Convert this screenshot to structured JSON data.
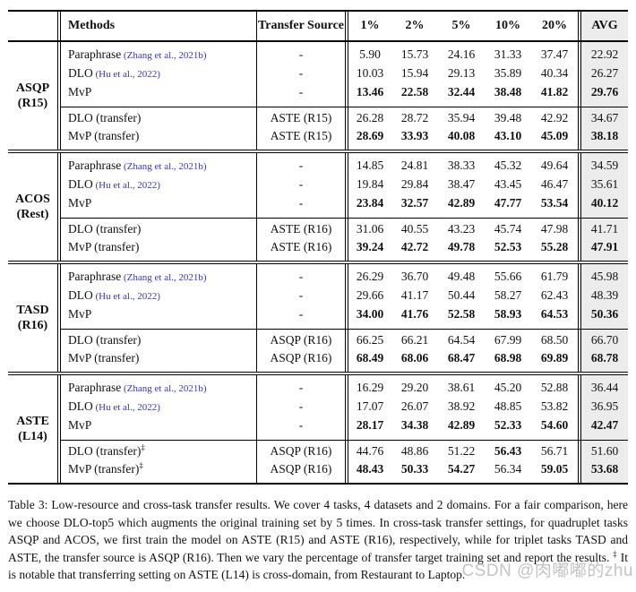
{
  "colors": {
    "citation": "#3535c3",
    "avg_column_bg": "#ececec",
    "rule": "#000000",
    "watermark": "#b9b9b9"
  },
  "table": {
    "header": {
      "methods": "Methods",
      "transfer_source": "Transfer Source",
      "percents": [
        "1%",
        "2%",
        "5%",
        "10%",
        "20%"
      ],
      "avg": "AVG"
    },
    "blocks": [
      {
        "task": "ASQP",
        "dataset": "(R15)",
        "baseline_rows": [
          {
            "method": "Paraphrase",
            "citation": "(Zhang et al., 2021b)",
            "marker": "",
            "source": "-",
            "values": [
              "5.90",
              "15.73",
              "24.16",
              "31.33",
              "37.47"
            ],
            "bold": [
              0,
              0,
              0,
              0,
              0
            ],
            "avg": "22.92",
            "avg_bold": 0
          },
          {
            "method": "DLO",
            "citation": "(Hu et al., 2022)",
            "marker": "",
            "source": "-",
            "values": [
              "10.03",
              "15.94",
              "29.13",
              "35.89",
              "40.34"
            ],
            "bold": [
              0,
              0,
              0,
              0,
              0
            ],
            "avg": "26.27",
            "avg_bold": 0
          },
          {
            "method": "MvP",
            "citation": "",
            "marker": "",
            "source": "-",
            "values": [
              "13.46",
              "22.58",
              "32.44",
              "38.48",
              "41.82"
            ],
            "bold": [
              1,
              1,
              1,
              1,
              1
            ],
            "avg": "29.76",
            "avg_bold": 1
          }
        ],
        "transfer_rows": [
          {
            "method": "DLO (transfer)",
            "citation": "",
            "marker": "",
            "source": "ASTE (R15)",
            "values": [
              "26.28",
              "28.72",
              "35.94",
              "39.48",
              "42.92"
            ],
            "bold": [
              0,
              0,
              0,
              0,
              0
            ],
            "avg": "34.67",
            "avg_bold": 0
          },
          {
            "method": "MvP (transfer)",
            "citation": "",
            "marker": "",
            "source": "ASTE (R15)",
            "values": [
              "28.69",
              "33.93",
              "40.08",
              "43.10",
              "45.09"
            ],
            "bold": [
              1,
              1,
              1,
              1,
              1
            ],
            "avg": "38.18",
            "avg_bold": 1
          }
        ]
      },
      {
        "task": "ACOS",
        "dataset": "(Rest)",
        "baseline_rows": [
          {
            "method": "Paraphrase",
            "citation": "(Zhang et al., 2021b)",
            "marker": "",
            "source": "-",
            "values": [
              "14.85",
              "24.81",
              "38.33",
              "45.32",
              "49.64"
            ],
            "bold": [
              0,
              0,
              0,
              0,
              0
            ],
            "avg": "34.59",
            "avg_bold": 0
          },
          {
            "method": "DLO",
            "citation": "(Hu et al., 2022)",
            "marker": "",
            "source": "-",
            "values": [
              "19.84",
              "29.84",
              "38.47",
              "43.45",
              "46.47"
            ],
            "bold": [
              0,
              0,
              0,
              0,
              0
            ],
            "avg": "35.61",
            "avg_bold": 0
          },
          {
            "method": "MvP",
            "citation": "",
            "marker": "",
            "source": "-",
            "values": [
              "23.84",
              "32.57",
              "42.89",
              "47.77",
              "53.54"
            ],
            "bold": [
              1,
              1,
              1,
              1,
              1
            ],
            "avg": "40.12",
            "avg_bold": 1
          }
        ],
        "transfer_rows": [
          {
            "method": "DLO (transfer)",
            "citation": "",
            "marker": "",
            "source": "ASTE (R16)",
            "values": [
              "31.06",
              "40.55",
              "43.23",
              "45.74",
              "47.98"
            ],
            "bold": [
              0,
              0,
              0,
              0,
              0
            ],
            "avg": "41.71",
            "avg_bold": 0
          },
          {
            "method": "MvP (transfer)",
            "citation": "",
            "marker": "",
            "source": "ASTE (R16)",
            "values": [
              "39.24",
              "42.72",
              "49.78",
              "52.53",
              "55.28"
            ],
            "bold": [
              1,
              1,
              1,
              1,
              1
            ],
            "avg": "47.91",
            "avg_bold": 1
          }
        ]
      },
      {
        "task": "TASD",
        "dataset": "(R16)",
        "baseline_rows": [
          {
            "method": "Paraphrase",
            "citation": "(Zhang et al., 2021b)",
            "marker": "",
            "source": "-",
            "values": [
              "26.29",
              "36.70",
              "49.48",
              "55.66",
              "61.79"
            ],
            "bold": [
              0,
              0,
              0,
              0,
              0
            ],
            "avg": "45.98",
            "avg_bold": 0
          },
          {
            "method": "DLO",
            "citation": "(Hu et al., 2022)",
            "marker": "",
            "source": "-",
            "values": [
              "29.66",
              "41.17",
              "50.44",
              "58.27",
              "62.43"
            ],
            "bold": [
              0,
              0,
              0,
              0,
              0
            ],
            "avg": "48.39",
            "avg_bold": 0
          },
          {
            "method": "MvP",
            "citation": "",
            "marker": "",
            "source": "-",
            "values": [
              "34.00",
              "41.76",
              "52.58",
              "58.93",
              "64.53"
            ],
            "bold": [
              1,
              1,
              1,
              1,
              1
            ],
            "avg": "50.36",
            "avg_bold": 1
          }
        ],
        "transfer_rows": [
          {
            "method": "DLO (transfer)",
            "citation": "",
            "marker": "",
            "source": "ASQP (R16)",
            "values": [
              "66.25",
              "66.21",
              "64.54",
              "67.99",
              "68.50"
            ],
            "bold": [
              0,
              0,
              0,
              0,
              0
            ],
            "avg": "66.70",
            "avg_bold": 0
          },
          {
            "method": "MvP (transfer)",
            "citation": "",
            "marker": "",
            "source": "ASQP (R16)",
            "values": [
              "68.49",
              "68.06",
              "68.47",
              "68.98",
              "69.89"
            ],
            "bold": [
              1,
              1,
              1,
              1,
              1
            ],
            "avg": "68.78",
            "avg_bold": 1
          }
        ]
      },
      {
        "task": "ASTE",
        "dataset": "(L14)",
        "baseline_rows": [
          {
            "method": "Paraphrase",
            "citation": "(Zhang et al., 2021b)",
            "marker": "",
            "source": "-",
            "values": [
              "16.29",
              "29.20",
              "38.61",
              "45.20",
              "52.88"
            ],
            "bold": [
              0,
              0,
              0,
              0,
              0
            ],
            "avg": "36.44",
            "avg_bold": 0
          },
          {
            "method": "DLO",
            "citation": "(Hu et al., 2022)",
            "marker": "",
            "source": "-",
            "values": [
              "17.07",
              "26.07",
              "38.92",
              "48.85",
              "53.82"
            ],
            "bold": [
              0,
              0,
              0,
              0,
              0
            ],
            "avg": "36.95",
            "avg_bold": 0
          },
          {
            "method": "MvP",
            "citation": "",
            "marker": "",
            "source": "-",
            "values": [
              "28.17",
              "34.38",
              "42.89",
              "52.33",
              "54.60"
            ],
            "bold": [
              1,
              1,
              1,
              1,
              1
            ],
            "avg": "42.47",
            "avg_bold": 1
          }
        ],
        "transfer_rows": [
          {
            "method": "DLO (transfer)",
            "citation": "",
            "marker": "‡",
            "source": "ASQP (R16)",
            "values": [
              "44.76",
              "48.86",
              "51.22",
              "56.43",
              "56.71"
            ],
            "bold": [
              0,
              0,
              0,
              1,
              0
            ],
            "avg": "51.60",
            "avg_bold": 0
          },
          {
            "method": "MvP (transfer)",
            "citation": "",
            "marker": "‡",
            "source": "ASQP (R16)",
            "values": [
              "48.43",
              "50.33",
              "54.27",
              "56.34",
              "59.05"
            ],
            "bold": [
              1,
              1,
              1,
              0,
              1
            ],
            "avg": "53.68",
            "avg_bold": 1
          }
        ]
      }
    ]
  },
  "caption": {
    "label": "Table 3:",
    "main": "Low-resource and cross-task transfer results. We cover 4 tasks, 4 datasets and 2 domains. For a fair comparison, here we choose DLO-top5 which augments the original training set by 5 times. In cross-task transfer settings, for quadruplet tasks ASQP and ACOS, we first train the model on ASTE (R15) and ASTE (R16), respectively, while for triplet tasks TASD and ASTE, the transfer source is ASQP (R16). Then we vary the percentage of transfer target training set and report the results.",
    "footnote_marker": "‡",
    "footnote_text": "It is notable that transferring setting on ASTE (L14) is cross-domain, from Restaurant to Laptop."
  },
  "watermark": {
    "text": "CSDN @肉嘟嘟的zhu"
  }
}
